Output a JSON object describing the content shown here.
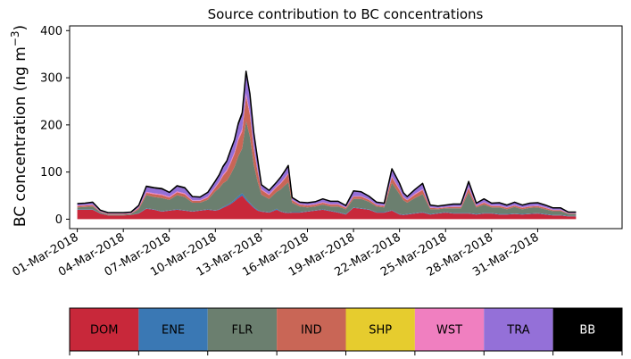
{
  "chart_data": {
    "type": "area",
    "title": "Source contribution to BC concentrations",
    "xlabel": "",
    "ylabel": "BC concentration (ng m",
    "ylabel_superscript": "−3",
    "ylabel_close": ")",
    "ylim": [
      -20,
      410
    ],
    "yticks": [
      0,
      100,
      200,
      300,
      400
    ],
    "xlim": [
      -0.5,
      35.5
    ],
    "xticks": [
      {
        "x": 0,
        "label": "01-Mar-2018"
      },
      {
        "x": 3,
        "label": "04-Mar-2018"
      },
      {
        "x": 6,
        "label": "07-Mar-2018"
      },
      {
        "x": 9,
        "label": "10-Mar-2018"
      },
      {
        "x": 12,
        "label": "13-Mar-2018"
      },
      {
        "x": 15,
        "label": "16-Mar-2018"
      },
      {
        "x": 18,
        "label": "19-Mar-2018"
      },
      {
        "x": 21,
        "label": "22-Mar-2018"
      },
      {
        "x": 24,
        "label": "25-Mar-2018"
      },
      {
        "x": 27,
        "label": "28-Mar-2018"
      },
      {
        "x": 30,
        "label": "31-Mar-2018"
      }
    ],
    "x": [
      0,
      0.5,
      1,
      1.5,
      2,
      2.5,
      3,
      3.5,
      4,
      4.5,
      5,
      5.5,
      6,
      6.5,
      7,
      7.5,
      8,
      8.5,
      9,
      9.25,
      9.5,
      9.75,
      10,
      10.25,
      10.5,
      10.75,
      11,
      11.25,
      11.5,
      11.75,
      12,
      12.5,
      13,
      13.25,
      13.5,
      13.75,
      14,
      14.5,
      15,
      15.5,
      16,
      16.5,
      17,
      17.5,
      18,
      18.5,
      19,
      19.5,
      20,
      20.5,
      21,
      21.25,
      21.5,
      22,
      22.5,
      23,
      23.5,
      24,
      24.5,
      25,
      25.5,
      26,
      26.5,
      27,
      27.5,
      28,
      28.5,
      29,
      29.5,
      30,
      30.5,
      31,
      31.5,
      32,
      32.5
    ],
    "series": [
      {
        "name": "DOM",
        "color": "#c8283a",
        "values": [
          20,
          20,
          20,
          12,
          8,
          8,
          8,
          9,
          12,
          22,
          20,
          16,
          18,
          20,
          18,
          16,
          18,
          20,
          18,
          20,
          24,
          28,
          32,
          38,
          45,
          50,
          40,
          32,
          24,
          18,
          16,
          14,
          20,
          16,
          14,
          13,
          14,
          14,
          16,
          18,
          20,
          17,
          14,
          10,
          24,
          22,
          20,
          14,
          14,
          18,
          10,
          9,
          10,
          12,
          14,
          10,
          12,
          14,
          12,
          12,
          12,
          10,
          12,
          12,
          10,
          10,
          11,
          10,
          11,
          12,
          10,
          8,
          8,
          6,
          6
        ]
      },
      {
        "name": "ENE",
        "color": "#3a78b4",
        "values": [
          1,
          1,
          1,
          1,
          0,
          0,
          0,
          0,
          1,
          1,
          1,
          1,
          1,
          1,
          1,
          1,
          1,
          1,
          1,
          1,
          2,
          2,
          3,
          3,
          4,
          5,
          4,
          3,
          2,
          2,
          1,
          1,
          2,
          1,
          1,
          1,
          1,
          1,
          1,
          1,
          1,
          1,
          1,
          1,
          1,
          1,
          1,
          1,
          1,
          1,
          1,
          1,
          1,
          1,
          1,
          1,
          1,
          1,
          1,
          1,
          1,
          1,
          1,
          1,
          1,
          1,
          1,
          1,
          1,
          1,
          1,
          1,
          1,
          1,
          1
        ]
      },
      {
        "name": "FLR",
        "color": "#6b7f6f",
        "values": [
          4,
          5,
          6,
          2,
          2,
          2,
          2,
          2,
          8,
          28,
          26,
          28,
          22,
          30,
          28,
          18,
          16,
          20,
          40,
          45,
          50,
          52,
          60,
          70,
          85,
          95,
          165,
          140,
          90,
          60,
          35,
          28,
          36,
          46,
          56,
          64,
          20,
          12,
          8,
          8,
          10,
          9,
          12,
          10,
          18,
          20,
          16,
          12,
          10,
          58,
          42,
          30,
          24,
          32,
          38,
          10,
          8,
          8,
          10,
          10,
          44,
          14,
          18,
          12,
          14,
          10,
          14,
          10,
          12,
          12,
          10,
          8,
          8,
          4,
          4
        ]
      },
      {
        "name": "IND",
        "color": "#c96656",
        "values": [
          3,
          3,
          3,
          1,
          1,
          1,
          1,
          1,
          3,
          5,
          6,
          6,
          5,
          6,
          6,
          4,
          4,
          5,
          8,
          12,
          16,
          20,
          24,
          28,
          34,
          36,
          52,
          46,
          34,
          22,
          10,
          8,
          10,
          12,
          14,
          18,
          5,
          4,
          4,
          4,
          4,
          4,
          4,
          3,
          5,
          5,
          4,
          3,
          3,
          12,
          9,
          6,
          5,
          7,
          9,
          3,
          2,
          2,
          3,
          3,
          9,
          3,
          4,
          3,
          3,
          3,
          3,
          3,
          3,
          3,
          3,
          2,
          2,
          1,
          1
        ]
      },
      {
        "name": "SHP",
        "color": "#e6cc2e",
        "values": [
          0,
          0,
          0,
          0,
          0,
          0,
          0,
          0,
          0,
          0,
          0,
          0,
          0,
          0,
          0,
          0,
          0,
          0,
          0,
          0,
          0,
          0,
          0,
          0,
          0,
          0,
          0,
          0,
          0,
          0,
          0,
          0,
          0,
          0,
          0,
          0,
          0,
          0,
          0,
          0,
          0,
          0,
          0,
          0,
          0,
          0,
          0,
          0,
          0,
          0,
          0,
          0,
          0,
          0,
          0,
          0,
          0,
          0,
          0,
          0,
          0,
          0,
          0,
          0,
          0,
          0,
          0,
          0,
          0,
          0,
          0,
          0,
          0,
          0,
          0
        ]
      },
      {
        "name": "WST",
        "color": "#f07fc0",
        "values": [
          1,
          1,
          1,
          1,
          1,
          1,
          1,
          1,
          1,
          2,
          2,
          2,
          2,
          2,
          2,
          1,
          1,
          2,
          2,
          2,
          3,
          3,
          4,
          4,
          5,
          6,
          6,
          5,
          4,
          3,
          2,
          2,
          2,
          2,
          2,
          2,
          1,
          1,
          1,
          1,
          1,
          1,
          1,
          1,
          1,
          1,
          1,
          1,
          1,
          2,
          2,
          1,
          1,
          2,
          2,
          1,
          1,
          1,
          1,
          1,
          2,
          1,
          1,
          1,
          1,
          1,
          1,
          1,
          1,
          1,
          1,
          1,
          1,
          1,
          1
        ]
      },
      {
        "name": "TRA",
        "color": "#9470d8",
        "values": [
          3,
          3,
          4,
          2,
          2,
          2,
          2,
          2,
          3,
          10,
          10,
          10,
          8,
          10,
          10,
          7,
          6,
          8,
          10,
          12,
          14,
          16,
          20,
          22,
          26,
          28,
          40,
          34,
          26,
          20,
          8,
          7,
          8,
          10,
          12,
          14,
          4,
          3,
          4,
          4,
          6,
          5,
          5,
          3,
          10,
          8,
          6,
          4,
          4,
          14,
          10,
          8,
          6,
          8,
          10,
          4,
          3,
          3,
          4,
          4,
          10,
          4,
          6,
          4,
          5,
          4,
          5,
          4,
          5,
          5,
          4,
          3,
          3,
          2,
          2
        ]
      },
      {
        "name": "BB",
        "color": "#000000",
        "values": [
          1,
          1,
          1,
          0,
          0,
          0,
          0,
          0,
          1,
          2,
          2,
          2,
          1,
          2,
          2,
          1,
          1,
          1,
          2,
          2,
          3,
          3,
          4,
          4,
          5,
          6,
          7,
          6,
          4,
          3,
          1,
          1,
          1,
          2,
          2,
          2,
          1,
          1,
          1,
          1,
          1,
          1,
          1,
          1,
          1,
          1,
          1,
          1,
          1,
          2,
          2,
          1,
          1,
          1,
          2,
          1,
          1,
          1,
          1,
          1,
          2,
          1,
          1,
          1,
          1,
          1,
          1,
          1,
          1,
          1,
          1,
          1,
          1,
          0,
          0
        ]
      }
    ],
    "legend": {
      "placement": "bottom",
      "entries": [
        {
          "label": "DOM",
          "color": "#c8283a",
          "text_color": "#000000"
        },
        {
          "label": "ENE",
          "color": "#3a78b4",
          "text_color": "#000000"
        },
        {
          "label": "FLR",
          "color": "#6b7f6f",
          "text_color": "#000000"
        },
        {
          "label": "IND",
          "color": "#c96656",
          "text_color": "#000000"
        },
        {
          "label": "SHP",
          "color": "#e6cc2e",
          "text_color": "#000000"
        },
        {
          "label": "WST",
          "color": "#f07fc0",
          "text_color": "#000000"
        },
        {
          "label": "TRA",
          "color": "#9470d8",
          "text_color": "#000000"
        },
        {
          "label": "BB",
          "color": "#000000",
          "text_color": "#ffffff"
        }
      ]
    },
    "grid": false
  }
}
